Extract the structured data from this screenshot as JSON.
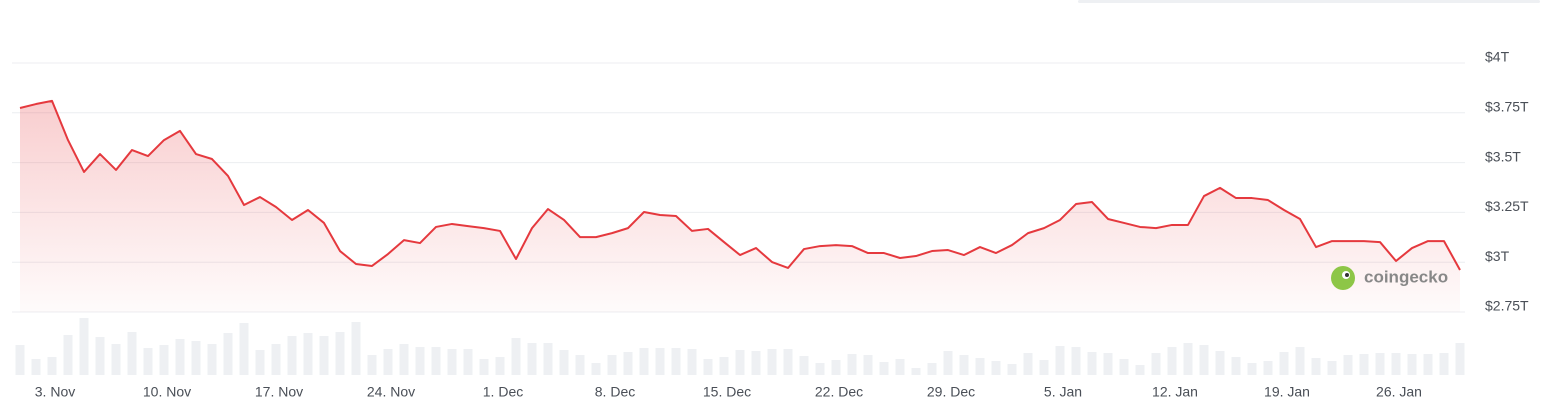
{
  "chart_data": {
    "type": "line",
    "watermark": "coingecko",
    "categories": [
      null,
      null,
      "3. Nov",
      null,
      null,
      null,
      null,
      null,
      null,
      "10. Nov",
      null,
      null,
      null,
      null,
      null,
      null,
      "17. Nov",
      null,
      null,
      null,
      null,
      null,
      null,
      "24. Nov",
      null,
      null,
      null,
      null,
      null,
      null,
      "1. Dec",
      null,
      null,
      null,
      null,
      null,
      null,
      "8. Dec",
      null,
      null,
      null,
      null,
      null,
      null,
      "15. Dec",
      null,
      null,
      null,
      null,
      null,
      null,
      "22. Dec",
      null,
      null,
      null,
      null,
      null,
      null,
      "29. Dec",
      null,
      null,
      null,
      null,
      null,
      null,
      "5. Jan",
      null,
      null,
      null,
      null,
      null,
      null,
      "12. Jan",
      null,
      null,
      null,
      null,
      null,
      null,
      "19. Jan",
      null,
      null,
      null,
      null,
      null,
      null,
      "26. Jan",
      null,
      null,
      null,
      null
    ],
    "series": [
      {
        "color": "#e5393e",
        "values": [
          3.774,
          3.794,
          3.81,
          3.613,
          3.453,
          3.543,
          3.463,
          3.563,
          3.533,
          3.613,
          3.659,
          3.543,
          3.518,
          3.433,
          3.287,
          3.327,
          3.277,
          3.212,
          3.262,
          3.197,
          3.056,
          2.991,
          2.981,
          3.041,
          3.111,
          3.096,
          3.177,
          3.192,
          3.181,
          3.171,
          3.157,
          3.016,
          3.171,
          3.267,
          3.212,
          3.126,
          3.126,
          3.146,
          3.171,
          3.252,
          3.237,
          3.232,
          3.157,
          3.167,
          3.101,
          3.036,
          3.071,
          3.001,
          2.971,
          3.066,
          3.081,
          3.086,
          3.081,
          3.046,
          3.046,
          3.021,
          3.031,
          3.056,
          3.061,
          3.036,
          3.076,
          3.046,
          3.086,
          3.146,
          3.171,
          3.212,
          3.292,
          3.302,
          3.217,
          3.197,
          3.177,
          3.171,
          3.187,
          3.187,
          3.332,
          3.373,
          3.322,
          3.322,
          3.312,
          3.262,
          3.217,
          3.076,
          3.106,
          3.106,
          3.106,
          3.101,
          3.006,
          3.071,
          3.106,
          3.106,
          2.961
        ]
      }
    ],
    "volume": {
      "color": "#eef0f3",
      "values": [
        30,
        16,
        18,
        40,
        57,
        38,
        31,
        43,
        27,
        30,
        36,
        34,
        31,
        42,
        52,
        25,
        31,
        39,
        42,
        39,
        43,
        53,
        20,
        26,
        31,
        28,
        28,
        26,
        26,
        16,
        18,
        37,
        32,
        32,
        25,
        20,
        12,
        20,
        23,
        27,
        27,
        27,
        26,
        16,
        18,
        25,
        24,
        26,
        26,
        19,
        12,
        15,
        21,
        20,
        13,
        16,
        7,
        12,
        24,
        20,
        17,
        14,
        11,
        22,
        15,
        29,
        28,
        23,
        22,
        16,
        10,
        22,
        28,
        32,
        30,
        24,
        18,
        12,
        14,
        23,
        28,
        17,
        14,
        20,
        21,
        22,
        22,
        21,
        21,
        22,
        32
      ],
      "ylim": [
        0,
        60
      ]
    },
    "ylim": [
      2.75,
      4.0
    ],
    "yticks": [
      {
        "value": 2.75,
        "label": "$2.75T"
      },
      {
        "value": 3,
        "label": "$3T"
      },
      {
        "value": 3.25,
        "label": "$3.25T"
      },
      {
        "value": 3.5,
        "label": "$3.5T"
      },
      {
        "value": 3.75,
        "label": "$3.75T"
      },
      {
        "value": 4,
        "label": "$4T"
      }
    ],
    "grid": true
  }
}
